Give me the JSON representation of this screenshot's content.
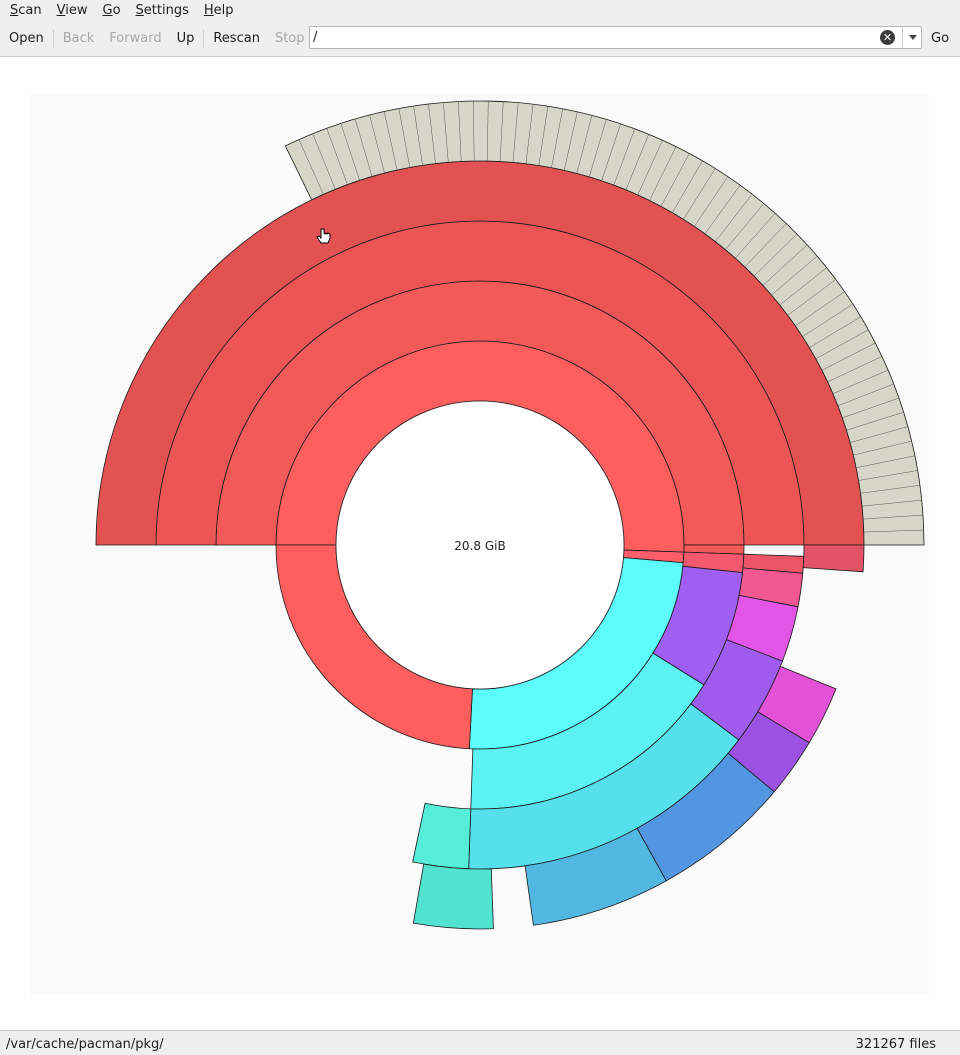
{
  "menu": {
    "scan": "Scan",
    "scan_mn": "S",
    "scan_rest": "can",
    "view": "View",
    "view_mn": "V",
    "view_rest": "iew",
    "go": "Go",
    "go_mn": "G",
    "go_rest": "o",
    "settings": "Settings",
    "settings_mn": "S",
    "settings_rest": "ettings",
    "help": "Help",
    "help_mn": "H",
    "help_rest": "elp"
  },
  "toolbar": {
    "open": "Open",
    "back": "Back",
    "forward": "Forward",
    "up": "Up",
    "rescan": "Rescan",
    "stop": "Stop",
    "go": "Go",
    "location_value": "/"
  },
  "chart": {
    "center_label": "20.8 GiB",
    "background": "#fafafa"
  },
  "icons": {
    "clear": "clear-icon",
    "dropdown": "chevron-down-icon",
    "cursor": "hand-cursor-icon"
  },
  "status": {
    "path": "/var/cache/pacman/pkg/",
    "files": "321267 files"
  },
  "chart_data": {
    "type": "sunburst",
    "center_label": "20.8 GiB",
    "segments": [
      {
        "ring": 1,
        "start_deg": -180,
        "end_deg": 2,
        "color": "#ff5e5e"
      },
      {
        "ring": 1,
        "start_deg": 2,
        "end_deg": 5,
        "color": "#ff5e6a"
      },
      {
        "ring": 1,
        "start_deg": 5,
        "end_deg": 93,
        "color": "#5cfcfc"
      },
      {
        "ring": 1,
        "start_deg": 93,
        "end_deg": 180,
        "color": "#ff5e5e"
      },
      {
        "ring": 2,
        "start_deg": -180,
        "end_deg": 0,
        "color": "#f25959"
      },
      {
        "ring": 2,
        "start_deg": 0,
        "end_deg": 2,
        "color": "#f25959"
      },
      {
        "ring": 2,
        "start_deg": 2,
        "end_deg": 6,
        "color": "#f2596e"
      },
      {
        "ring": 2,
        "start_deg": 6,
        "end_deg": 32,
        "color": "#a05ef2"
      },
      {
        "ring": 2,
        "start_deg": 32,
        "end_deg": 92,
        "color": "#5cf2f2"
      },
      {
        "ring": 3,
        "start_deg": -180,
        "end_deg": 0,
        "color": "#ec5555"
      },
      {
        "ring": 3,
        "start_deg": 2,
        "end_deg": 5,
        "color": "#ec5566"
      },
      {
        "ring": 3,
        "start_deg": 5,
        "end_deg": 11,
        "color": "#f25890"
      },
      {
        "ring": 3,
        "start_deg": 11,
        "end_deg": 21,
        "color": "#e355e6"
      },
      {
        "ring": 3,
        "start_deg": 21,
        "end_deg": 37,
        "color": "#9f5cec"
      },
      {
        "ring": 3,
        "start_deg": 37,
        "end_deg": 92,
        "color": "#55e0ec"
      },
      {
        "ring": 3,
        "start_deg": 92,
        "end_deg": 102,
        "color": "#55ecd8"
      },
      {
        "ring": 4,
        "start_deg": -180,
        "end_deg": 0,
        "color": "#e25252"
      },
      {
        "ring": 4,
        "start_deg": 0,
        "end_deg": 4,
        "color": "#e25268"
      },
      {
        "ring": 4,
        "start_deg": 22,
        "end_deg": 31,
        "color": "#e252d6"
      },
      {
        "ring": 4,
        "start_deg": 31,
        "end_deg": 40,
        "color": "#9b52e2"
      },
      {
        "ring": 4,
        "start_deg": 40,
        "end_deg": 61,
        "color": "#5296e2"
      },
      {
        "ring": 4,
        "start_deg": 61,
        "end_deg": 82,
        "color": "#52b8e2"
      },
      {
        "ring": 4,
        "start_deg": 88,
        "end_deg": 100,
        "color": "#52e2d0"
      },
      {
        "ring": 5,
        "start_deg": -116,
        "end_deg": 0,
        "color": "#d6d6c8"
      }
    ]
  }
}
